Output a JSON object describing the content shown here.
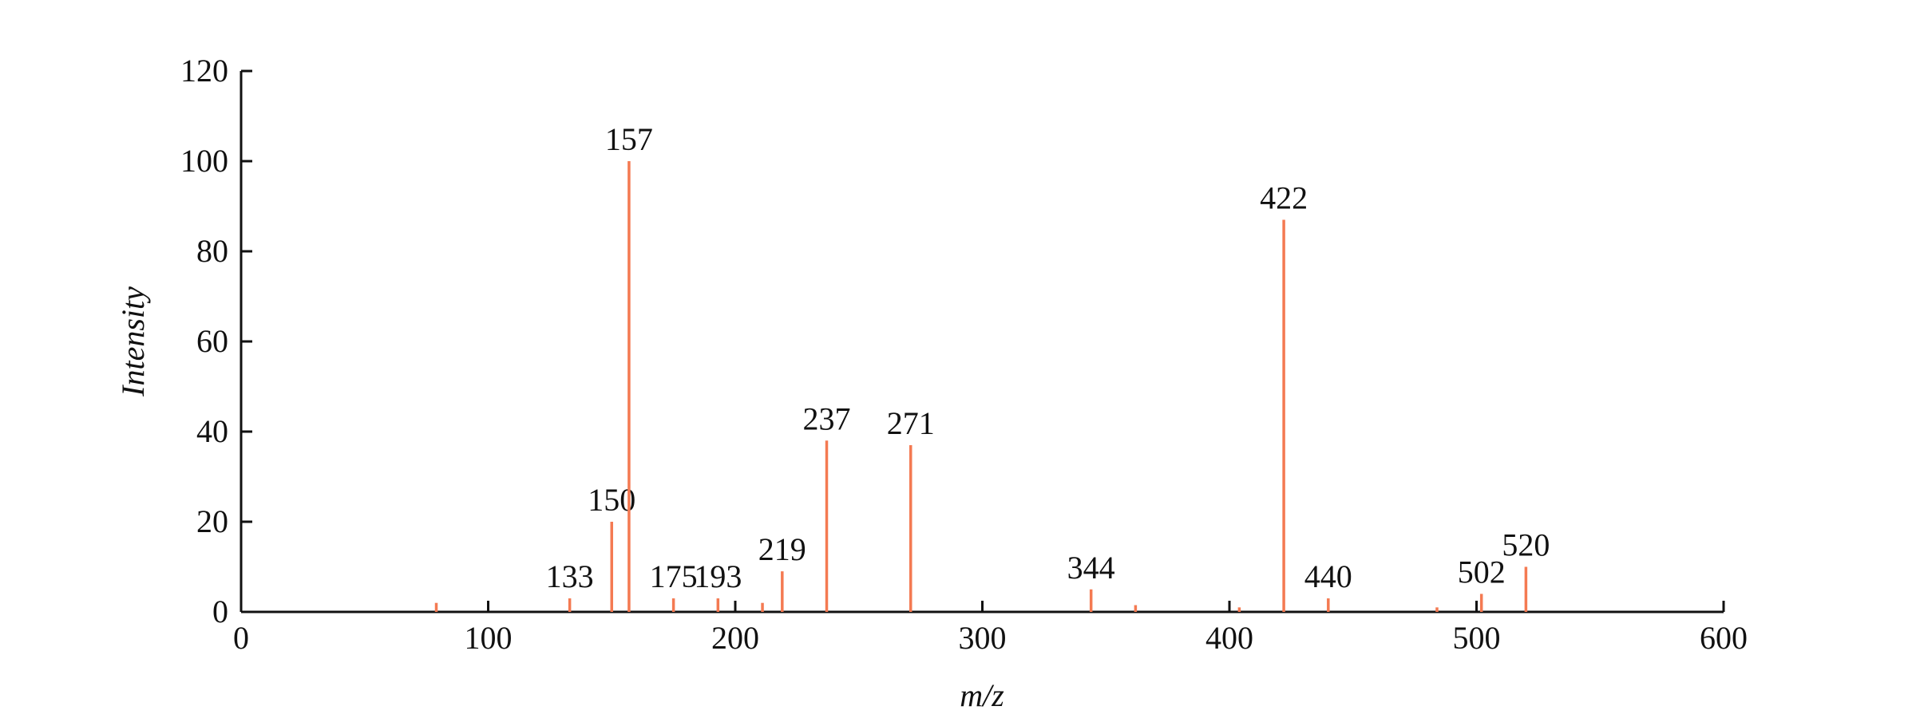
{
  "chart_data": {
    "type": "stem",
    "xlabel": "m/z",
    "ylabel": "Intensity",
    "x": [
      79,
      133,
      150,
      157,
      175,
      193,
      211,
      219,
      237,
      271,
      344,
      362,
      404,
      422,
      440,
      484,
      502,
      520
    ],
    "values": [
      2,
      3,
      20,
      100,
      3,
      3,
      2,
      9,
      38,
      37,
      5,
      1.5,
      1,
      87,
      3,
      1,
      4,
      10
    ],
    "peak_labels": [
      null,
      "133",
      "150",
      "157",
      "175",
      "193",
      null,
      "219",
      "237",
      "271",
      "344",
      null,
      null,
      "422",
      "440",
      null,
      "502",
      "520"
    ],
    "color": "#f47a52",
    "xlim": [
      0,
      600
    ],
    "xticks": [
      0,
      100,
      200,
      300,
      400,
      500,
      600
    ],
    "ylim": [
      0,
      120
    ],
    "yticks": [
      0,
      20,
      40,
      60,
      80,
      100,
      120
    ]
  }
}
